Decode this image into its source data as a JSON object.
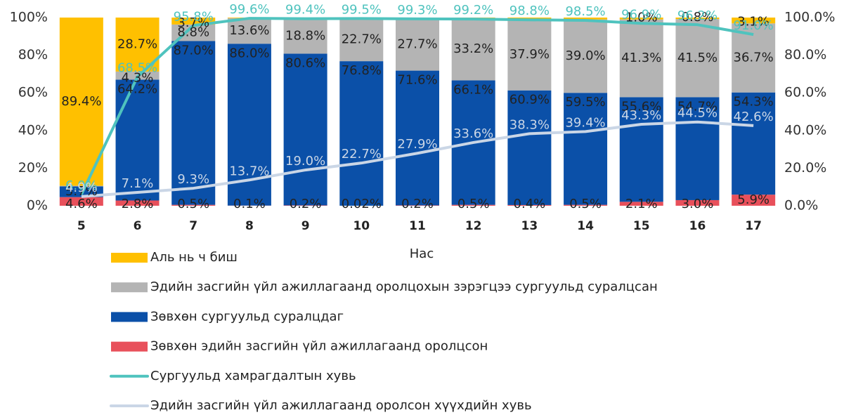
{
  "chart_data": {
    "type": "bar",
    "stacked": true,
    "x_label": "Нас",
    "categories": [
      "5",
      "6",
      "7",
      "8",
      "9",
      "10",
      "11",
      "12",
      "13",
      "14",
      "15",
      "16",
      "17"
    ],
    "ylim": [
      0,
      100
    ],
    "yticks": [
      {
        "value": 0,
        "label": "0%"
      },
      {
        "value": 20,
        "label": "20%"
      },
      {
        "value": 40,
        "label": "40%"
      },
      {
        "value": 60,
        "label": "60%"
      },
      {
        "value": 80,
        "label": "80%"
      },
      {
        "value": 100,
        "label": "100%"
      }
    ],
    "y2lim": [
      0,
      100
    ],
    "y2ticks": [
      {
        "value": 0,
        "label": "0.0%"
      },
      {
        "value": 20,
        "label": "20.0%"
      },
      {
        "value": 40,
        "label": "40.0%"
      },
      {
        "value": 60,
        "label": "60.0%"
      },
      {
        "value": 80,
        "label": "80.0%"
      },
      {
        "value": 100,
        "label": "100.0%"
      }
    ],
    "series": [
      {
        "name": "Аль нь ч биш",
        "type": "bar",
        "color": "#FFC000",
        "values": [
          89.4,
          28.7,
          3.7,
          0.3,
          0.4,
          0.5,
          0.5,
          0.2,
          0.8,
          1.0,
          1.0,
          0.8,
          3.1
        ],
        "value_labels": [
          "89.4%",
          "28.7%",
          "3.7%",
          null,
          null,
          null,
          null,
          null,
          null,
          null,
          "1.0%",
          "0.8%",
          "3.1%"
        ]
      },
      {
        "name": "Эдийн засгийн үйл ажиллагаанд оролцохын зэрэгцээ сургуульд суралцсан",
        "type": "bar",
        "color": "#B4B4B4",
        "values": [
          0.3,
          4.3,
          8.8,
          13.6,
          18.8,
          22.7,
          27.7,
          33.2,
          37.9,
          39.0,
          41.3,
          41.5,
          36.7
        ],
        "value_labels": [
          null,
          "4.3%",
          "8.8%",
          "13.6%",
          "18.8%",
          "22.7%",
          "27.7%",
          "33.2%",
          "37.9%",
          "39.0%",
          "41.3%",
          "41.5%",
          "36.7%"
        ]
      },
      {
        "name": "Зөвхөн сургуульд суралцдаг",
        "type": "bar",
        "color": "#0B50A8",
        "values": [
          5.7,
          64.2,
          87.0,
          86.0,
          80.6,
          76.8,
          71.6,
          66.1,
          60.9,
          59.5,
          55.6,
          54.7,
          54.3
        ],
        "value_labels": [
          "5.7%",
          "64.2%",
          "87.0%",
          "86.0%",
          "80.6%",
          "76.8%",
          "71.6%",
          "66.1%",
          "60.9%",
          "59.5%",
          "55.6%",
          "54.7%",
          "54.3%"
        ]
      },
      {
        "name": "Зөвхөн эдийн засгийн үйл ажиллагаанд оролцсон",
        "type": "bar",
        "color": "#E8505B",
        "values": [
          4.6,
          2.8,
          0.5,
          0.1,
          0.2,
          0.02,
          0.2,
          0.5,
          0.4,
          0.5,
          2.1,
          3.0,
          5.9
        ],
        "value_labels": [
          "4.6%",
          "2.8%",
          "0.5%",
          "0.1%",
          "0.2%",
          "0.02%",
          "0.2%",
          "0.5%",
          "0.4%",
          "0.5%",
          "2.1%",
          "3.0%",
          "5.9%"
        ]
      },
      {
        "name": "Сургуульд хамрагдалтын хувь",
        "type": "line",
        "axis": "y2",
        "color": "#4FC3BE",
        "values": [
          6.0,
          68.5,
          95.8,
          99.6,
          99.4,
          99.5,
          99.3,
          99.2,
          98.8,
          98.5,
          96.9,
          96.2,
          91.0
        ],
        "value_labels": [
          "6.0%",
          "68.5%",
          "95.8%",
          "99.6%",
          "99.4%",
          "99.5%",
          "99.3%",
          "99.2%",
          "98.8%",
          "98.5%",
          "96.9%",
          "96.2%",
          "91.0%"
        ]
      },
      {
        "name": "Эдийн засгийн үйл ажиллагаанд оролсон хүүхдийн хувь",
        "type": "line",
        "axis": "y2",
        "color": "#CAD6E6",
        "values": [
          4.9,
          7.1,
          9.3,
          13.7,
          19.0,
          22.7,
          27.9,
          33.6,
          38.3,
          39.4,
          43.3,
          44.5,
          42.6
        ],
        "value_labels": [
          "4.9%",
          "7.1%",
          "9.3%",
          "13.7%",
          "19.0%",
          "22.7%",
          "27.9%",
          "33.6%",
          "38.3%",
          "39.4%",
          "43.3%",
          "44.5%",
          "42.6%"
        ]
      }
    ]
  }
}
